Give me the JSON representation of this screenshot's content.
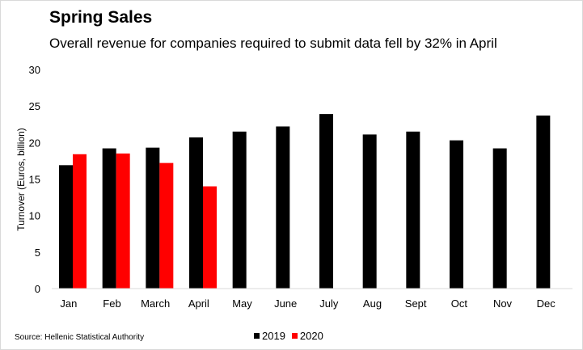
{
  "title": "Spring Sales",
  "subtitle": "Overall revenue for companies required to submit data fell by 32% in April",
  "source": "Source: Hellenic Statistical Authority",
  "chart_data": {
    "type": "bar",
    "categories": [
      "Jan",
      "Feb",
      "March",
      "April",
      "May",
      "June",
      "July",
      "Aug",
      "Sept",
      "Oct",
      "Nov",
      "Dec"
    ],
    "series": [
      {
        "name": "2019",
        "color": "#000000",
        "values": [
          16.9,
          19.2,
          19.3,
          20.7,
          21.5,
          22.2,
          23.9,
          21.1,
          21.5,
          20.3,
          19.2,
          23.7
        ]
      },
      {
        "name": "2020",
        "color": "#ff0000",
        "values": [
          18.4,
          18.5,
          17.2,
          14.0,
          null,
          null,
          null,
          null,
          null,
          null,
          null,
          null
        ]
      }
    ],
    "ylabel": "Turnover (Euros, billion)",
    "xlabel": "",
    "ylim": [
      0,
      30
    ],
    "yticks": [
      0,
      5,
      10,
      15,
      20,
      25,
      30
    ],
    "grid": false,
    "legend": "bottom-center"
  }
}
